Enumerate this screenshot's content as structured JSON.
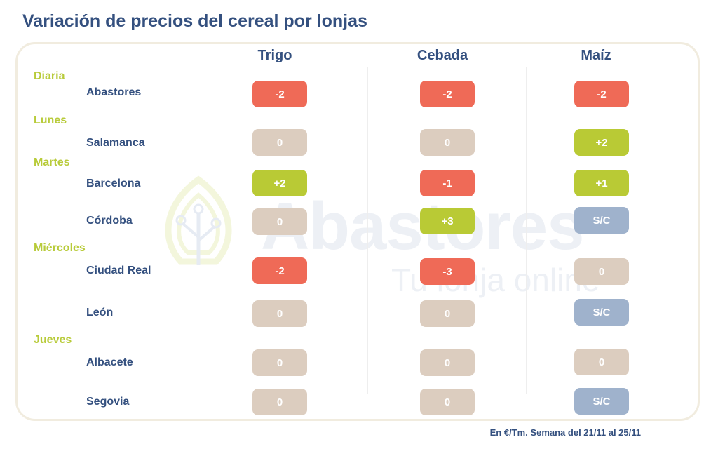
{
  "title": "Variación de precios del cereal por lonjas",
  "columns": [
    "Trigo",
    "Cebada",
    "Maíz"
  ],
  "watermark": {
    "brand": "Abastores",
    "tagline": "Tu lonja online"
  },
  "days": {
    "diaria": "Diaria",
    "lunes": "Lunes",
    "martes": "Martes",
    "miercoles": "Miércoles",
    "jueves": "Jueves"
  },
  "rows": [
    {
      "city": "Abastores",
      "trigo": "-2",
      "cebada": "-2",
      "maiz": "-2"
    },
    {
      "city": "Salamanca",
      "trigo": "0",
      "cebada": "0",
      "maiz": "+2"
    },
    {
      "city": "Barcelona",
      "trigo": "+2",
      "cebada": "-1",
      "maiz": "+1"
    },
    {
      "city": "Córdoba",
      "trigo": "0",
      "cebada": "+3",
      "maiz": "S/C"
    },
    {
      "city": "Ciudad Real",
      "trigo": "-2",
      "cebada": "-3",
      "maiz": "0"
    },
    {
      "city": "León",
      "trigo": "0",
      "cebada": "0",
      "maiz": "S/C"
    },
    {
      "city": "Albacete",
      "trigo": "0",
      "cebada": "0",
      "maiz": "0"
    },
    {
      "city": "Segovia",
      "trigo": "0",
      "cebada": "0",
      "maiz": "S/C"
    }
  ],
  "footer": "En €/Tm. Semana del 21/11 al 25/11",
  "colors": {
    "negative": "#ef6a57",
    "positive": "#b9ca35",
    "zero": "#dccdbf",
    "no_quote": "#9fb2cc"
  }
}
